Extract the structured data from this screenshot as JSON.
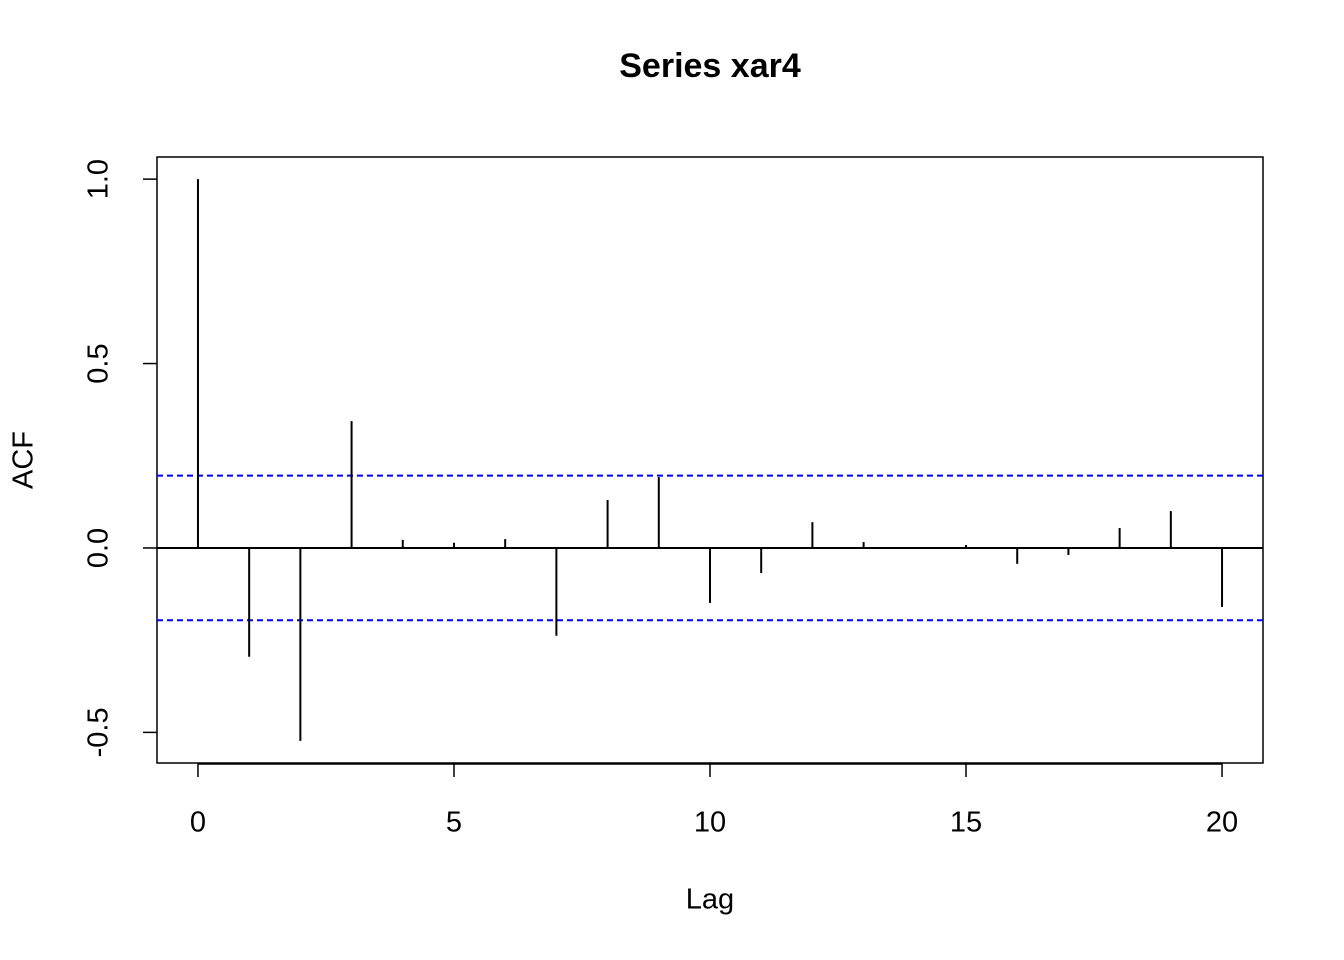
{
  "chart_data": {
    "type": "stem",
    "title": "Series  xar4",
    "x_label": "Lag",
    "y_label": "ACF",
    "x": [
      0,
      1,
      2,
      3,
      4,
      5,
      6,
      7,
      8,
      9,
      10,
      11,
      12,
      13,
      14,
      15,
      16,
      17,
      18,
      19,
      20
    ],
    "values": [
      1.0,
      -0.295,
      -0.523,
      0.344,
      0.022,
      0.014,
      0.024,
      -0.238,
      0.13,
      0.192,
      -0.149,
      -0.068,
      0.07,
      0.016,
      0.002,
      0.008,
      -0.043,
      -0.019,
      0.054,
      0.1,
      -0.16
    ],
    "color": "#000000",
    "confidence_lines": [
      0.196,
      -0.196
    ],
    "confidence_color": "#0000ff",
    "xlim": [
      -0.8,
      20.8
    ],
    "ylim": [
      -0.583,
      1.06
    ],
    "xticks": [
      0,
      5,
      10,
      15,
      20
    ],
    "yticks": [
      {
        "value": -0.5,
        "label": "-0.5"
      },
      {
        "value": 0,
        "label": "0.0"
      },
      {
        "value": 0.5,
        "label": "0.5"
      },
      {
        "value": 1,
        "label": "1.0"
      }
    ]
  }
}
